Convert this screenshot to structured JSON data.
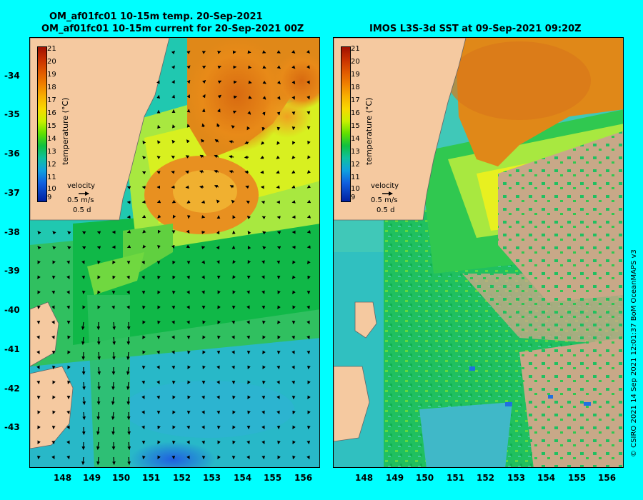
{
  "titles": {
    "left_line1": "OM_af01fc01 10-15m temp. 20-Sep-2021",
    "left_line2": "OM_af01fc01 10-15m current for 20-Sep-2021 00Z",
    "right_line1": "IMOS L3S-3d SST at 09-Sep-2021 09:20Z"
  },
  "axes": {
    "longitudes": [
      "148",
      "149",
      "150",
      "151",
      "152",
      "153",
      "154",
      "155",
      "156"
    ],
    "latitudes": [
      "-34",
      "-35",
      "-36",
      "-37",
      "-38",
      "-39",
      "-40",
      "-41",
      "-42",
      "-43"
    ]
  },
  "colorbar": {
    "label": "temperature (°C)",
    "ticks": [
      "21",
      "20",
      "19",
      "18",
      "17",
      "16",
      "15",
      "14",
      "13",
      "12",
      "11",
      "10",
      "9"
    ]
  },
  "velocity_legend": {
    "title": "velocity",
    "speed": "0.5 m/s",
    "duration": "0.5 d"
  },
  "copyright": "© CSIRO 2021   14 Sep 2021 12:01:37 BoM OceanMAPS v3",
  "colors": {
    "background": "#00ffff",
    "land": "#f5c9a0",
    "no_data": "#c8a888"
  }
}
